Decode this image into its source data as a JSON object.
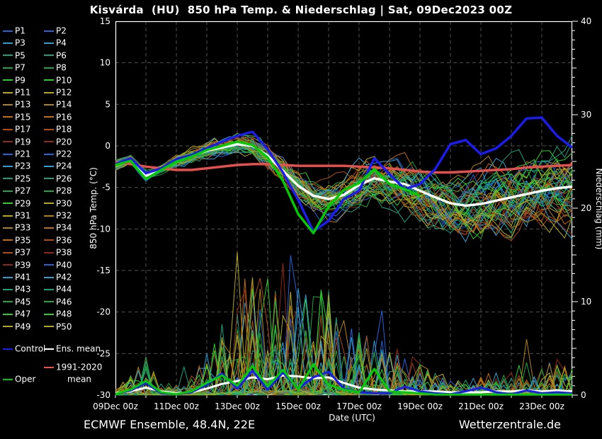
{
  "title": "Kisvárda  (HU)  850 hPa Temp. & Niederschlag | Sat, 09Dec2023 00Z",
  "footer": {
    "left": "ECMWF Ensemble, 48.4N, 22E",
    "right": "Wetterzentrale.de"
  },
  "legend": {
    "member_labels": [
      "P1",
      "P2",
      "P3",
      "P4",
      "P5",
      "P6",
      "P7",
      "P8",
      "P9",
      "P10",
      "P11",
      "P12",
      "P13",
      "P14",
      "P15",
      "P16",
      "P17",
      "P18",
      "P19",
      "P20",
      "P21",
      "P22",
      "P23",
      "P24",
      "P25",
      "P26",
      "P27",
      "P28",
      "P29",
      "P30",
      "P31",
      "P32",
      "P33",
      "P34",
      "P35",
      "P36",
      "P37",
      "P38",
      "P39",
      "P40",
      "P41",
      "P42",
      "P43",
      "P44",
      "P45",
      "P46",
      "P47",
      "P48",
      "P49",
      "P50"
    ],
    "control_label": "Control",
    "ens_mean_label": "Ens. mean",
    "clim_label_line1": "1991-2020",
    "clim_label_line2": "mean",
    "oper_label": "Oper"
  },
  "chart_data": {
    "type": "line",
    "title": "Kisvárda  (HU)  850 hPa Temp. & Niederschlag | Sat, 09Dec2023 00Z",
    "x_axis": {
      "label": "Date (UTC)",
      "start_day": 0,
      "end_day": 15,
      "tick_days": [
        0,
        2,
        4,
        6,
        8,
        10,
        12,
        14
      ],
      "tick_labels": [
        "09Dec 00z",
        "11Dec 00z",
        "13Dec 00z",
        "15Dec 00z",
        "17Dec 00z",
        "19Dec 00z",
        "21Dec 00z",
        "23Dec 00z"
      ],
      "gridline_every_days": 1
    },
    "y_left": {
      "label": "850 hPa Temp. (°C)",
      "min": -30,
      "max": 15,
      "ticks": [
        15,
        10,
        5,
        0,
        -5,
        -10,
        -15,
        -20,
        -25,
        -30
      ],
      "grid_ticks": [
        10,
        5,
        0,
        -5,
        -10,
        -15,
        -20,
        -25
      ]
    },
    "y_right": {
      "label": "Niederschlag (mm)",
      "min": 0,
      "max": 40,
      "ticks": [
        0,
        10,
        20,
        30,
        40
      ],
      "minor_tick_step": 1
    },
    "sample_step_days": 0.5,
    "series": {
      "ens_mean_temp": [
        -2.3,
        -1.6,
        -3.6,
        -2.8,
        -1.8,
        -1.2,
        -0.6,
        -0.2,
        0.2,
        0.0,
        -1.2,
        -3.0,
        -4.8,
        -6.0,
        -6.4,
        -5.9,
        -4.7,
        -3.9,
        -4.3,
        -4.6,
        -5.4,
        -6.2,
        -6.9,
        -7.2,
        -7.0,
        -6.6,
        -6.2,
        -5.8,
        -5.4,
        -5.1,
        -4.9
      ],
      "control_temp": [
        -2.2,
        -1.5,
        -3.3,
        -2.7,
        -1.6,
        -1.1,
        -0.3,
        0.5,
        1.2,
        1.7,
        -0.4,
        -3.2,
        -6.5,
        -10.3,
        -9.0,
        -6.4,
        -5.4,
        -1.5,
        -3.4,
        -5.2,
        -4.6,
        -2.8,
        0.2,
        0.7,
        -1.0,
        -0.3,
        1.2,
        3.3,
        3.4,
        1.2,
        -0.2
      ],
      "oper_temp": [
        -2.3,
        -1.8,
        -4.0,
        -2.9,
        -1.9,
        -1.3,
        -0.5,
        0.0,
        0.5,
        0.1,
        -1.4,
        -4.2,
        -8.2,
        -10.5,
        -7.3,
        -5.3,
        -4.5,
        -2.8,
        -4.6,
        -5.2,
        -6.0
      ],
      "clim_mean_temp": [
        -2.0,
        -2.2,
        -2.5,
        -2.7,
        -2.9,
        -2.9,
        -2.7,
        -2.5,
        -2.3,
        -2.2,
        -2.2,
        -2.3,
        -2.4,
        -2.4,
        -2.4,
        -2.4,
        -2.5,
        -2.6,
        -2.7,
        -2.9,
        -3.1,
        -3.2,
        -3.2,
        -3.1,
        -3.0,
        -2.9,
        -2.8,
        -2.6,
        -2.5,
        -2.4,
        -2.3
      ],
      "ens_mean_precip": [
        0.2,
        0.4,
        0.8,
        0.4,
        0.2,
        0.3,
        0.7,
        1.2,
        1.5,
        1.9,
        1.7,
        2.1,
        2.0,
        1.8,
        1.9,
        1.3,
        0.8,
        0.6,
        0.5,
        0.4,
        0.4,
        0.4,
        0.3,
        0.3,
        0.3,
        0.4,
        0.4,
        0.5,
        0.4,
        0.5,
        0.4
      ],
      "control_precip": [
        0.1,
        0.5,
        1.3,
        0.2,
        0.1,
        0.3,
        1.1,
        2.3,
        0.7,
        2.6,
        0.6,
        2.4,
        0.7,
        1.9,
        2.5,
        0.7,
        0.3,
        0.2,
        0.2,
        0.9,
        0.4,
        0.2,
        0.1,
        0.4,
        0.8,
        0.3,
        0.1,
        0.5,
        0.2,
        0.3,
        0.2
      ],
      "oper_precip": [
        0.1,
        0.6,
        1.5,
        0.3,
        0.1,
        0.4,
        1.3,
        2.1,
        1.0,
        3.1,
        0.9,
        2.7,
        0.6,
        3.3,
        1.1,
        0.6,
        0.3,
        2.8,
        0.4,
        0.3,
        0.2,
        0.05,
        0.05,
        0.05,
        0.05,
        0.05,
        0.05,
        0.05,
        0.05,
        0.05,
        0.05
      ]
    },
    "ensemble": {
      "member_count": 50,
      "oper_length_days": 10,
      "temp_spread": [
        0.3,
        0.5,
        0.7,
        0.8,
        0.9,
        1.0,
        1.1,
        1.2,
        1.3,
        1.4,
        1.6,
        1.9,
        2.2,
        2.5,
        2.7,
        2.9,
        3.1,
        3.3,
        3.5,
        3.7,
        3.9,
        4.1,
        4.3,
        4.5,
        4.6,
        4.7,
        4.8,
        4.9,
        5.0,
        5.1,
        5.2
      ],
      "precip_activity": [
        0.3,
        0.8,
        1.6,
        0.6,
        0.4,
        0.8,
        1.8,
        3.0,
        4.2,
        5.5,
        5.0,
        5.5,
        5.2,
        4.6,
        4.4,
        3.4,
        2.6,
        2.4,
        2.2,
        1.8,
        1.4,
        1.0,
        0.8,
        0.7,
        0.8,
        1.0,
        1.2,
        1.4,
        1.2,
        1.5,
        1.1
      ],
      "seed": 20231209
    },
    "colors": {
      "background": "#000000",
      "frame": "#ffffff",
      "grid": "#4f4f4f",
      "control": "#1c1cf0",
      "ens_mean": "#ffffff",
      "clim_mean": "#e85050",
      "oper": "#00cc00",
      "member_palette": [
        "#2464d8",
        "#2e9fd0",
        "#1ba07c",
        "#21a53e",
        "#2ecc2e",
        "#b3a820",
        "#b28418",
        "#c06c14",
        "#ae4d15",
        "#8f2817"
      ],
      "member_color_index": [
        0,
        0,
        1,
        1,
        2,
        2,
        3,
        3,
        4,
        4,
        5,
        5,
        6,
        6,
        7,
        7,
        8,
        8,
        9,
        9,
        0,
        0,
        1,
        1,
        2,
        2,
        3,
        3,
        4,
        5,
        5,
        6,
        6,
        7,
        7,
        8,
        8,
        9,
        9,
        0,
        1,
        1,
        2,
        2,
        3,
        3,
        4,
        4,
        5,
        5
      ]
    }
  }
}
